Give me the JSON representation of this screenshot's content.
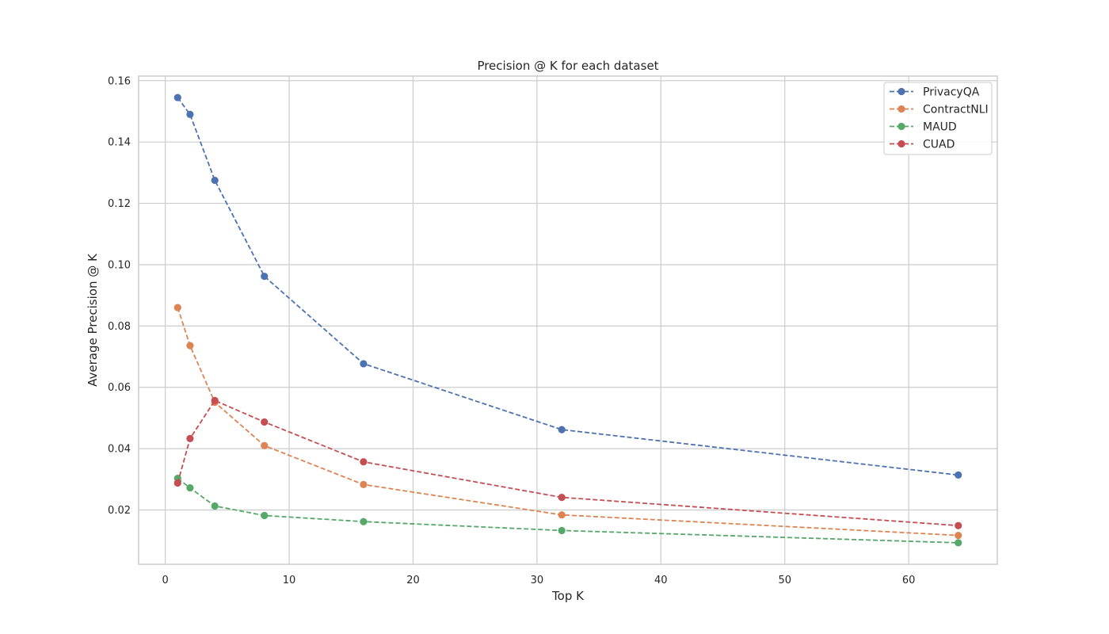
{
  "chart_data": {
    "type": "line",
    "title": "Precision @ K for each dataset",
    "xlabel": "Top K",
    "ylabel": "Average Precision @ K",
    "xlim": [
      -2.15,
      67.15
    ],
    "ylim": [
      0.0023,
      0.1615
    ],
    "xticks": [
      0,
      10,
      20,
      30,
      40,
      50,
      60
    ],
    "yticks": [
      0.02,
      0.04,
      0.06,
      0.08,
      0.1,
      0.12,
      0.14,
      0.16
    ],
    "ytick_labels": [
      "0.02",
      "0.04",
      "0.06",
      "0.08",
      "0.10",
      "0.12",
      "0.14",
      "0.16"
    ],
    "grid": true,
    "legend_position": "top-right",
    "x": [
      1,
      2,
      4,
      8,
      16,
      32,
      64
    ],
    "series": [
      {
        "name": "PrivacyQA",
        "color": "#4c72b0",
        "values": [
          0.1545,
          0.149,
          0.1275,
          0.0962,
          0.0677,
          0.0462,
          0.0314
        ]
      },
      {
        "name": "ContractNLI",
        "color": "#dd8452",
        "values": [
          0.086,
          0.0736,
          0.0551,
          0.041,
          0.0283,
          0.0184,
          0.0117
        ]
      },
      {
        "name": "MAUD",
        "color": "#55a868",
        "values": [
          0.0303,
          0.0272,
          0.0213,
          0.0182,
          0.0162,
          0.0133,
          0.0093
        ]
      },
      {
        "name": "CUAD",
        "color": "#c44e52",
        "values": [
          0.0288,
          0.0433,
          0.0557,
          0.0487,
          0.0357,
          0.0241,
          0.0149
        ]
      }
    ]
  }
}
